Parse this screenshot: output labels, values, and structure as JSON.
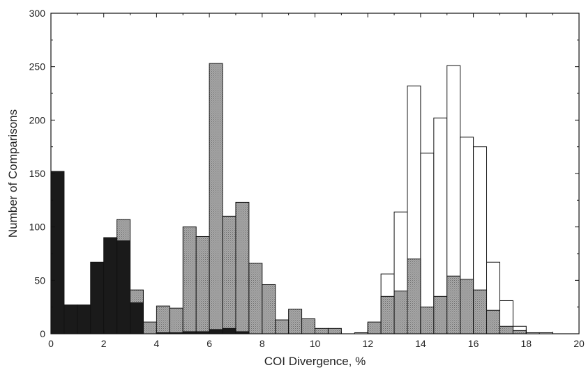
{
  "chart_data": {
    "type": "bar",
    "title": "",
    "xlabel": "COI Divergence, %",
    "ylabel": "Number of Comparisons",
    "xlim": [
      0,
      20
    ],
    "ylim": [
      0,
      300
    ],
    "bin_width": 0.5,
    "x_ticks": [
      0,
      2,
      4,
      6,
      8,
      10,
      12,
      14,
      16,
      18,
      20
    ],
    "y_ticks": [
      0,
      50,
      100,
      150,
      200,
      250,
      300
    ],
    "grid": false,
    "legend": "none",
    "series": [
      {
        "fill": "#ffffff",
        "bin_starts": [
          11.0,
          11.5,
          12.0,
          12.5,
          13.0,
          13.5,
          14.0,
          14.5,
          15.0,
          15.5,
          16.0,
          16.5,
          17.0,
          17.5,
          18.0,
          18.5
        ],
        "values": [
          0,
          1,
          10,
          56,
          114,
          232,
          169,
          202,
          251,
          184,
          175,
          67,
          31,
          7,
          1,
          1
        ]
      },
      {
        "fill": "#9a9a9a",
        "bin_starts": [
          0.0,
          0.5,
          1.0,
          1.5,
          2.0,
          2.5,
          3.0,
          3.5,
          4.0,
          4.5,
          5.0,
          5.5,
          6.0,
          6.5,
          7.0,
          7.5,
          8.0,
          8.5,
          9.0,
          9.5,
          10.0,
          10.5,
          12.0,
          12.5,
          13.0,
          13.5,
          14.0,
          14.5,
          15.0,
          15.5,
          16.0,
          16.5,
          17.0,
          17.5
        ],
        "values": [
          0,
          0,
          0,
          0,
          0,
          107,
          41,
          11,
          26,
          24,
          100,
          91,
          253,
          110,
          123,
          66,
          46,
          13,
          23,
          14,
          5,
          5,
          11,
          35,
          40,
          70,
          25,
          35,
          54,
          51,
          41,
          22,
          7,
          3
        ]
      },
      {
        "fill": "#1a1a1a",
        "bin_starts": [
          0.0,
          0.5,
          1.0,
          1.5,
          2.0,
          2.5,
          3.0,
          3.5,
          4.0,
          4.5,
          5.0,
          5.5,
          6.0,
          6.5,
          7.0
        ],
        "values": [
          152,
          27,
          27,
          67,
          90,
          87,
          29,
          0,
          1,
          1,
          2,
          2,
          4,
          5,
          2
        ]
      }
    ]
  }
}
